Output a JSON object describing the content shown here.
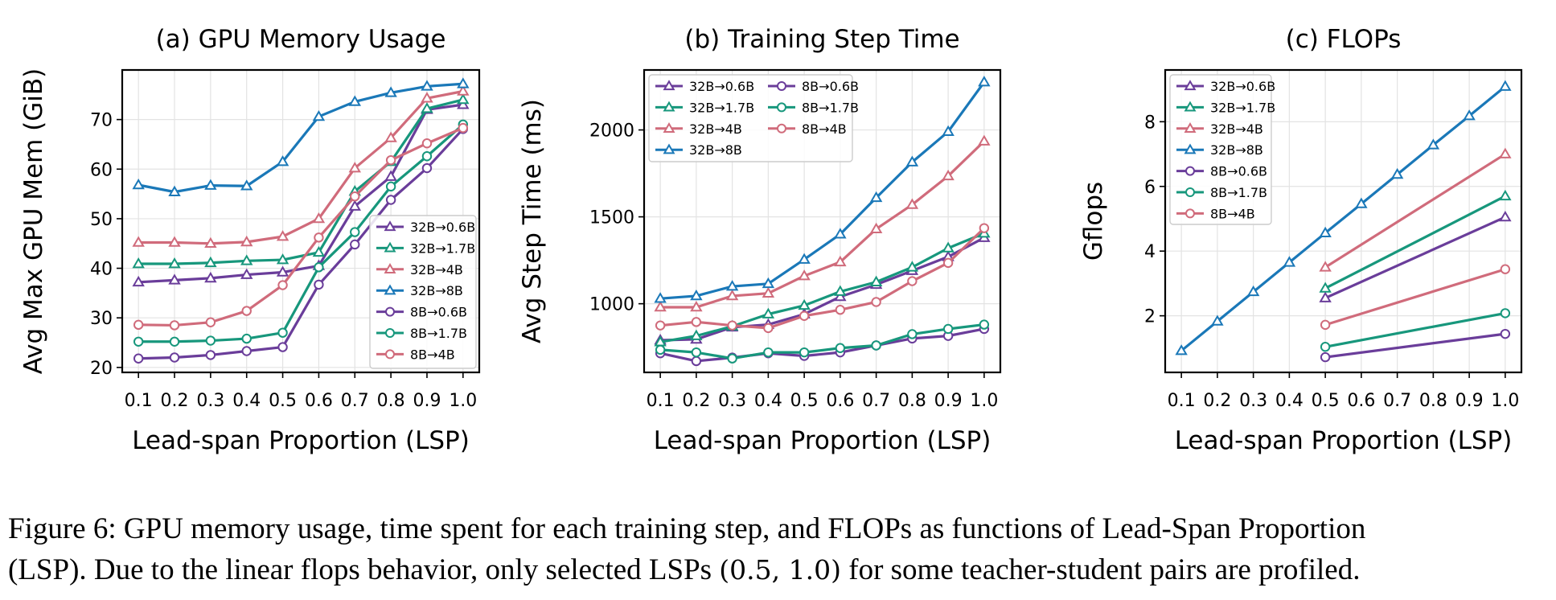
{
  "figure": {
    "caption": {
      "label": "Figure 6:",
      "line1_rest": "GPU memory usage, time spent for each training step, and FLOPs as functions of Lead-Span Proportion",
      "line2_a": "(LSP). Due to the linear flops behavior, only selected LSPs",
      "line2_math": "(0.5, 1.0)",
      "line2_b": "for some teacher-student pairs are profiled."
    }
  },
  "chart_data": [
    {
      "type": "line",
      "title": "(a) GPU Memory Usage",
      "xlabel": "Lead-span Proportion (LSP)",
      "ylabel": "Avg Max GPU Mem (GiB)",
      "xlim": [
        0.055,
        1.045
      ],
      "ylim": [
        19,
        80
      ],
      "yticks": [
        20,
        30,
        40,
        50,
        60,
        70
      ],
      "xticks": [
        0.1,
        0.2,
        0.3,
        0.4,
        0.5,
        0.6,
        0.7,
        0.8,
        0.9,
        1.0
      ],
      "grid": true,
      "legend": "lower-right",
      "legend_cols": 1,
      "series": [
        {
          "name": "32B→0.6B",
          "color": "#6a3d9a",
          "marker": "triangle",
          "x": [
            0.1,
            0.2,
            0.3,
            0.4,
            0.5,
            0.6,
            0.7,
            0.8,
            0.9,
            1.0
          ],
          "values": [
            37.2,
            37.6,
            38.0,
            38.7,
            39.2,
            40.5,
            52.5,
            58.5,
            72.0,
            73.0
          ]
        },
        {
          "name": "32B→1.7B",
          "color": "#17977c",
          "marker": "triangle",
          "x": [
            0.1,
            0.2,
            0.3,
            0.4,
            0.5,
            0.6,
            0.7,
            0.8,
            0.9,
            1.0
          ],
          "values": [
            40.9,
            40.9,
            41.1,
            41.5,
            41.7,
            43.2,
            55.5,
            61.5,
            72.2,
            74.0
          ]
        },
        {
          "name": "32B→4B",
          "color": "#d06b7b",
          "marker": "triangle",
          "x": [
            0.1,
            0.2,
            0.3,
            0.4,
            0.5,
            0.6,
            0.7,
            0.8,
            0.9,
            1.0
          ],
          "values": [
            45.2,
            45.2,
            45.0,
            45.3,
            46.4,
            50.0,
            60.2,
            66.3,
            74.3,
            75.7
          ]
        },
        {
          "name": "32B→8B",
          "color": "#1a78b8",
          "marker": "triangle",
          "x": [
            0.1,
            0.2,
            0.3,
            0.4,
            0.5,
            0.6,
            0.7,
            0.8,
            0.9,
            1.0
          ],
          "values": [
            56.8,
            55.4,
            56.7,
            56.6,
            61.5,
            70.6,
            73.6,
            75.4,
            76.7,
            77.2
          ]
        },
        {
          "name": "8B→0.6B",
          "color": "#6a3d9a",
          "marker": "circle",
          "x": [
            0.1,
            0.2,
            0.3,
            0.4,
            0.5,
            0.6,
            0.7,
            0.8,
            0.9,
            1.0
          ],
          "values": [
            21.8,
            22.0,
            22.5,
            23.3,
            24.1,
            36.7,
            44.8,
            53.8,
            60.2,
            68.1
          ]
        },
        {
          "name": "8B→1.7B",
          "color": "#17977c",
          "marker": "circle",
          "x": [
            0.1,
            0.2,
            0.3,
            0.4,
            0.5,
            0.6,
            0.7,
            0.8,
            0.9,
            1.0
          ],
          "values": [
            25.2,
            25.2,
            25.4,
            25.8,
            27.0,
            40.2,
            47.3,
            56.5,
            62.6,
            69.0
          ]
        },
        {
          "name": "8B→4B",
          "color": "#d06b7b",
          "marker": "circle",
          "x": [
            0.1,
            0.2,
            0.3,
            0.4,
            0.5,
            0.6,
            0.7,
            0.8,
            0.9,
            1.0
          ],
          "values": [
            28.6,
            28.5,
            29.1,
            31.4,
            36.6,
            46.2,
            54.5,
            61.8,
            65.2,
            68.3
          ]
        }
      ]
    },
    {
      "type": "line",
      "title": "(b) Training Step Time",
      "xlabel": "Lead-span Proportion (LSP)",
      "ylabel": "Avg Step Time (ms)",
      "xlim": [
        0.055,
        1.045
      ],
      "ylim": [
        605,
        2345
      ],
      "yticks": [
        1000,
        1500,
        2000
      ],
      "xticks": [
        0.1,
        0.2,
        0.3,
        0.4,
        0.5,
        0.6,
        0.7,
        0.8,
        0.9,
        1.0
      ],
      "grid": true,
      "legend": "upper-left",
      "legend_cols": 2,
      "series": [
        {
          "name": "32B→0.6B",
          "color": "#6a3d9a",
          "marker": "triangle",
          "x": [
            0.1,
            0.2,
            0.3,
            0.4,
            0.5,
            0.6,
            0.7,
            0.8,
            0.9,
            1.0
          ],
          "values": [
            790,
            795,
            865,
            880,
            940,
            1040,
            1110,
            1190,
            1270,
            1380
          ]
        },
        {
          "name": "32B→1.7B",
          "color": "#17977c",
          "marker": "triangle",
          "x": [
            0.1,
            0.2,
            0.3,
            0.4,
            0.5,
            0.6,
            0.7,
            0.8,
            0.9,
            1.0
          ],
          "values": [
            780,
            815,
            870,
            940,
            990,
            1070,
            1125,
            1210,
            1320,
            1405
          ]
        },
        {
          "name": "32B→4B",
          "color": "#d06b7b",
          "marker": "triangle",
          "x": [
            0.1,
            0.2,
            0.3,
            0.4,
            0.5,
            0.6,
            0.7,
            0.8,
            0.9,
            1.0
          ],
          "values": [
            980,
            980,
            1045,
            1060,
            1160,
            1240,
            1430,
            1570,
            1735,
            1935
          ]
        },
        {
          "name": "32B→8B",
          "color": "#1a78b8",
          "marker": "triangle",
          "x": [
            0.1,
            0.2,
            0.3,
            0.4,
            0.5,
            0.6,
            0.7,
            0.8,
            0.9,
            1.0
          ],
          "values": [
            1030,
            1045,
            1100,
            1115,
            1255,
            1400,
            1610,
            1815,
            1990,
            2275
          ]
        },
        {
          "name": "8B→0.6B",
          "color": "#6a3d9a",
          "marker": "circle",
          "x": [
            0.1,
            0.2,
            0.3,
            0.4,
            0.5,
            0.6,
            0.7,
            0.8,
            0.9,
            1.0
          ],
          "values": [
            715,
            670,
            690,
            715,
            700,
            720,
            760,
            800,
            815,
            855
          ]
        },
        {
          "name": "8B→1.7B",
          "color": "#17977c",
          "marker": "circle",
          "x": [
            0.1,
            0.2,
            0.3,
            0.4,
            0.5,
            0.6,
            0.7,
            0.8,
            0.9,
            1.0
          ],
          "values": [
            735,
            720,
            685,
            720,
            720,
            745,
            760,
            825,
            855,
            880
          ]
        },
        {
          "name": "8B→4B",
          "color": "#d06b7b",
          "marker": "circle",
          "x": [
            0.1,
            0.2,
            0.3,
            0.4,
            0.5,
            0.6,
            0.7,
            0.8,
            0.9,
            1.0
          ],
          "values": [
            875,
            895,
            875,
            860,
            930,
            965,
            1010,
            1130,
            1235,
            1435
          ]
        }
      ]
    },
    {
      "type": "line",
      "title": "(c) FLOPs",
      "xlabel": "Lead-span Proportion (LSP)",
      "ylabel": "Gflops",
      "xlim": [
        0.055,
        1.045
      ],
      "ylim": [
        0.25,
        9.6
      ],
      "yticks": [
        2,
        4,
        6,
        8
      ],
      "xticks": [
        0.1,
        0.2,
        0.3,
        0.4,
        0.5,
        0.6,
        0.7,
        0.8,
        0.9,
        1.0
      ],
      "grid": true,
      "legend": "upper-left",
      "legend_cols": 1,
      "series": [
        {
          "name": "32B→0.6B",
          "color": "#6a3d9a",
          "marker": "triangle",
          "x": [
            0.5,
            1.0
          ],
          "values": [
            2.55,
            5.05
          ]
        },
        {
          "name": "32B→1.7B",
          "color": "#17977c",
          "marker": "triangle",
          "x": [
            0.5,
            1.0
          ],
          "values": [
            2.85,
            5.7
          ]
        },
        {
          "name": "32B→4B",
          "color": "#d06b7b",
          "marker": "triangle",
          "x": [
            0.5,
            1.0
          ],
          "values": [
            3.5,
            7.0
          ]
        },
        {
          "name": "32B→8B",
          "color": "#1a78b8",
          "marker": "triangle",
          "x": [
            0.1,
            0.2,
            0.3,
            0.4,
            0.5,
            0.6,
            0.7,
            0.8,
            0.9,
            1.0
          ],
          "values": [
            0.92,
            1.83,
            2.74,
            3.65,
            4.56,
            5.46,
            6.37,
            7.28,
            8.18,
            9.09
          ]
        },
        {
          "name": "8B→0.6B",
          "color": "#6a3d9a",
          "marker": "circle",
          "x": [
            0.5,
            1.0
          ],
          "values": [
            0.72,
            1.44
          ]
        },
        {
          "name": "8B→1.7B",
          "color": "#17977c",
          "marker": "circle",
          "x": [
            0.5,
            1.0
          ],
          "values": [
            1.04,
            2.08
          ]
        },
        {
          "name": "8B→4B",
          "color": "#d06b7b",
          "marker": "circle",
          "x": [
            0.5,
            1.0
          ],
          "values": [
            1.72,
            3.44
          ]
        }
      ]
    }
  ]
}
